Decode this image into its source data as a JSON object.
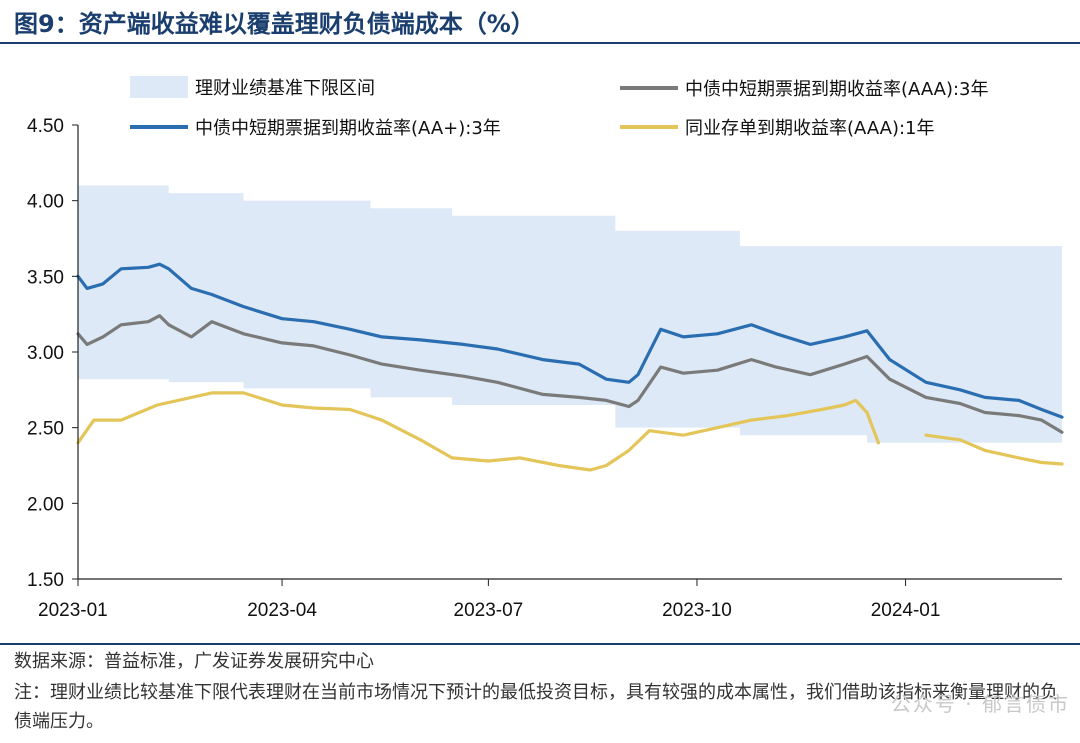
{
  "title": "图9：资产端收益难以覆盖理财负债端成本（%）",
  "source": "数据来源：普益标准，广发证券发展研究中心",
  "note": "注：理财业绩比较基准下限代表理财在当前市场情况下预计的最低投资目标，具有较强的成本属性，我们借助该指标来衡量理财的负债端压力。",
  "watermark": "公众号 · 郁言债市",
  "colors": {
    "band": "#dde9f6",
    "aa_plus": "#2a6db1",
    "aaa": "#7a7a7a",
    "ncd": "#e3c559",
    "accent": "#1a3e6e"
  },
  "chart_data": {
    "type": "line",
    "x_ticks": [
      "2023-01",
      "2023-04",
      "2023-07",
      "2023-10",
      "2024-01"
    ],
    "ylim": [
      1.5,
      4.5
    ],
    "y_ticks": [
      "1.50",
      "2.00",
      "2.50",
      "3.00",
      "3.50",
      "4.00",
      "4.50"
    ],
    "x_range": [
      "2023-01-01",
      "2024-03-10"
    ],
    "band": {
      "name": "理财业绩基准下限区间",
      "x": [
        "2023-01-01",
        "2023-02-10",
        "2023-02-10",
        "2023-03-15",
        "2023-03-15",
        "2023-05-10",
        "2023-05-10",
        "2023-06-15",
        "2023-06-15",
        "2023-08-26",
        "2023-08-26",
        "2023-10-20",
        "2023-10-20",
        "2023-12-15",
        "2023-12-15",
        "2024-03-10"
      ],
      "upper": [
        4.1,
        4.1,
        4.05,
        4.05,
        4.0,
        4.0,
        3.95,
        3.95,
        3.9,
        3.9,
        3.8,
        3.8,
        3.7,
        3.7,
        3.7,
        3.7
      ],
      "lower": [
        2.82,
        2.82,
        2.8,
        2.8,
        2.76,
        2.76,
        2.7,
        2.7,
        2.65,
        2.65,
        2.5,
        2.5,
        2.45,
        2.45,
        2.4,
        2.4
      ]
    },
    "series": [
      {
        "name": "中债中短期票据到期收益率(AA+):3年",
        "color": "#2a6db1",
        "x": [
          "2023-01-01",
          "2023-01-05",
          "2023-01-12",
          "2023-01-20",
          "2023-02-01",
          "2023-02-06",
          "2023-02-10",
          "2023-02-20",
          "2023-03-01",
          "2023-03-15",
          "2023-04-01",
          "2023-04-15",
          "2023-05-01",
          "2023-05-15",
          "2023-06-01",
          "2023-06-20",
          "2023-07-05",
          "2023-07-25",
          "2023-08-10",
          "2023-08-22",
          "2023-09-01",
          "2023-09-05",
          "2023-09-15",
          "2023-09-25",
          "2023-10-10",
          "2023-10-25",
          "2023-11-05",
          "2023-11-20",
          "2023-12-05",
          "2023-12-15",
          "2023-12-25",
          "2024-01-10",
          "2024-01-25",
          "2024-02-05",
          "2024-02-20",
          "2024-03-01",
          "2024-03-10"
        ],
        "values": [
          3.5,
          3.42,
          3.45,
          3.55,
          3.56,
          3.58,
          3.55,
          3.42,
          3.38,
          3.3,
          3.22,
          3.2,
          3.15,
          3.1,
          3.08,
          3.05,
          3.02,
          2.95,
          2.92,
          2.82,
          2.8,
          2.85,
          3.15,
          3.1,
          3.12,
          3.18,
          3.12,
          3.05,
          3.1,
          3.14,
          2.95,
          2.8,
          2.75,
          2.7,
          2.68,
          2.62,
          2.57
        ]
      },
      {
        "name": "中债中短期票据到期收益率(AAA):3年",
        "color": "#7a7a7a",
        "x": [
          "2023-01-01",
          "2023-01-05",
          "2023-01-12",
          "2023-01-20",
          "2023-02-01",
          "2023-02-06",
          "2023-02-10",
          "2023-02-20",
          "2023-03-01",
          "2023-03-15",
          "2023-04-01",
          "2023-04-15",
          "2023-05-01",
          "2023-05-15",
          "2023-06-01",
          "2023-06-20",
          "2023-07-05",
          "2023-07-25",
          "2023-08-10",
          "2023-08-22",
          "2023-09-01",
          "2023-09-05",
          "2023-09-15",
          "2023-09-25",
          "2023-10-10",
          "2023-10-25",
          "2023-11-05",
          "2023-11-20",
          "2023-12-05",
          "2023-12-15",
          "2023-12-25",
          "2024-01-10",
          "2024-01-25",
          "2024-02-05",
          "2024-02-20",
          "2024-03-01",
          "2024-03-10"
        ],
        "values": [
          3.12,
          3.05,
          3.1,
          3.18,
          3.2,
          3.24,
          3.18,
          3.1,
          3.2,
          3.12,
          3.06,
          3.04,
          2.98,
          2.92,
          2.88,
          2.84,
          2.8,
          2.72,
          2.7,
          2.68,
          2.64,
          2.68,
          2.9,
          2.86,
          2.88,
          2.95,
          2.9,
          2.85,
          2.92,
          2.97,
          2.82,
          2.7,
          2.66,
          2.6,
          2.58,
          2.55,
          2.47
        ]
      },
      {
        "name": "同业存单到期收益率(AAA):1年",
        "color": "#e3c559",
        "x": [
          "2023-01-01",
          "2023-01-08",
          "2023-01-20",
          "2023-02-05",
          "2023-02-20",
          "2023-03-01",
          "2023-03-15",
          "2023-04-01",
          "2023-04-15",
          "2023-05-01",
          "2023-05-15",
          "2023-06-01",
          "2023-06-15",
          "2023-07-01",
          "2023-07-15",
          "2023-08-01",
          "2023-08-15",
          "2023-08-22",
          "2023-09-01",
          "2023-09-10",
          "2023-09-25",
          "2023-10-10",
          "2023-10-25",
          "2023-11-10",
          "2023-11-25",
          "2023-12-05",
          "2023-12-10",
          "2023-12-15",
          "2023-12-20",
          "2023-12-28",
          "2024-01-10",
          "2024-01-25",
          "2024-02-05",
          "2024-02-20",
          "2024-03-01",
          "2024-03-10"
        ],
        "values": [
          2.4,
          2.55,
          2.55,
          2.65,
          2.7,
          2.73,
          2.73,
          2.65,
          2.63,
          2.62,
          2.55,
          2.42,
          2.3,
          2.28,
          2.3,
          2.25,
          2.22,
          2.25,
          2.35,
          2.48,
          2.45,
          2.5,
          2.55,
          2.58,
          2.62,
          2.65,
          2.68,
          2.6,
          2.4,
          null,
          2.45,
          2.42,
          2.35,
          2.3,
          2.27,
          2.26
        ]
      }
    ]
  }
}
